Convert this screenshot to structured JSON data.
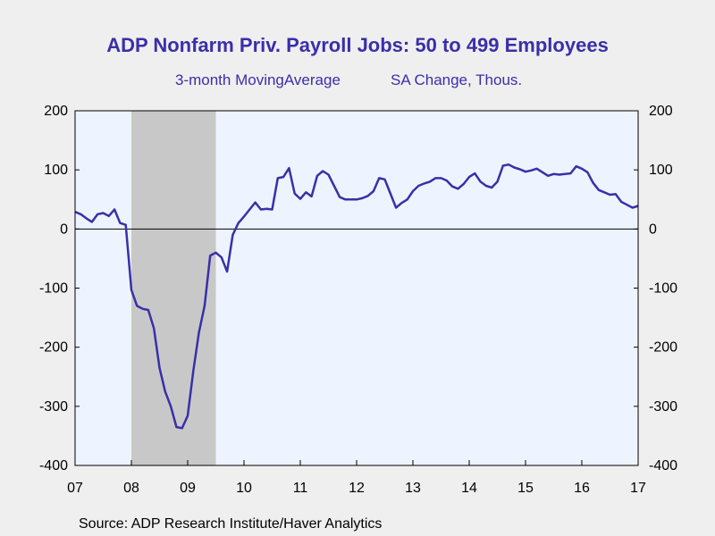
{
  "chart_data": {
    "type": "line",
    "title": "ADP Nonfarm Priv. Payroll Jobs: 50 to 499 Employees",
    "subtitle_left": "3-month MovingAverage",
    "subtitle_right": "SA Change, Thous.",
    "source": "Source:  ADP Research Institute/Haver Analytics",
    "x_ticks": [
      "07",
      "08",
      "09",
      "10",
      "11",
      "12",
      "13",
      "14",
      "15",
      "16",
      "17"
    ],
    "y_ticks": [
      200,
      100,
      0,
      -100,
      -200,
      -300,
      -400
    ],
    "xlim": [
      2007.0,
      2017.0
    ],
    "ylim": [
      -400,
      200
    ],
    "recession": [
      2008.0,
      2009.5
    ],
    "colors": {
      "line": "#3a2fa8",
      "recession": "#c8c8c8",
      "plot_bg": "#eef4ff"
    },
    "series": [
      {
        "x": [
          2007.0,
          2007.1,
          2007.2,
          2007.3,
          2007.4,
          2007.5,
          2007.6,
          2007.7,
          2007.8,
          2007.9,
          2008.0,
          2008.1,
          2008.2,
          2008.3,
          2008.4,
          2008.5,
          2008.6,
          2008.7,
          2008.8,
          2008.9,
          2009.0,
          2009.1,
          2009.2,
          2009.3,
          2009.4,
          2009.5,
          2009.6,
          2009.7,
          2009.8,
          2009.9,
          2010.0,
          2010.1,
          2010.2,
          2010.3,
          2010.4,
          2010.5,
          2010.6,
          2010.7,
          2010.8,
          2010.9,
          2011.0,
          2011.1,
          2011.2,
          2011.3,
          2011.4,
          2011.5,
          2011.6,
          2011.7,
          2011.8,
          2011.9,
          2012.0,
          2012.1,
          2012.2,
          2012.3,
          2012.4,
          2012.5,
          2012.6,
          2012.7,
          2012.8,
          2012.9,
          2013.0,
          2013.1,
          2013.2,
          2013.3,
          2013.4,
          2013.5,
          2013.6,
          2013.7,
          2013.8,
          2013.9,
          2014.0,
          2014.1,
          2014.2,
          2014.3,
          2014.4,
          2014.5,
          2014.6,
          2014.7,
          2014.8,
          2014.9,
          2015.0,
          2015.1,
          2015.2,
          2015.3,
          2015.4,
          2015.5,
          2015.6,
          2015.7,
          2015.8,
          2015.9,
          2016.0,
          2016.1,
          2016.2,
          2016.3,
          2016.4,
          2016.5,
          2016.6,
          2016.7,
          2016.8,
          2016.9,
          2017.0
        ],
        "y": [
          29,
          25,
          18,
          12,
          25,
          27,
          22,
          33,
          10,
          7,
          -103,
          -130,
          -135,
          -137,
          -168,
          -235,
          -275,
          -300,
          -335,
          -337,
          -316,
          -240,
          -175,
          -130,
          -45,
          -40,
          -48,
          -72,
          -10,
          10,
          21,
          33,
          45,
          33,
          34,
          33,
          86,
          88,
          103,
          60,
          51,
          62,
          55,
          90,
          98,
          92,
          73,
          54,
          50,
          50,
          50,
          52,
          56,
          64,
          86,
          84,
          60,
          36,
          44,
          50,
          64,
          73,
          77,
          80,
          86,
          86,
          82,
          72,
          68,
          76,
          88,
          94,
          80,
          73,
          70,
          80,
          107,
          109,
          104,
          101,
          97,
          99,
          102,
          96,
          90,
          93,
          92,
          93,
          94,
          106,
          102,
          96,
          78,
          66,
          62,
          58,
          59,
          46,
          41,
          36,
          39
        ]
      }
    ]
  }
}
